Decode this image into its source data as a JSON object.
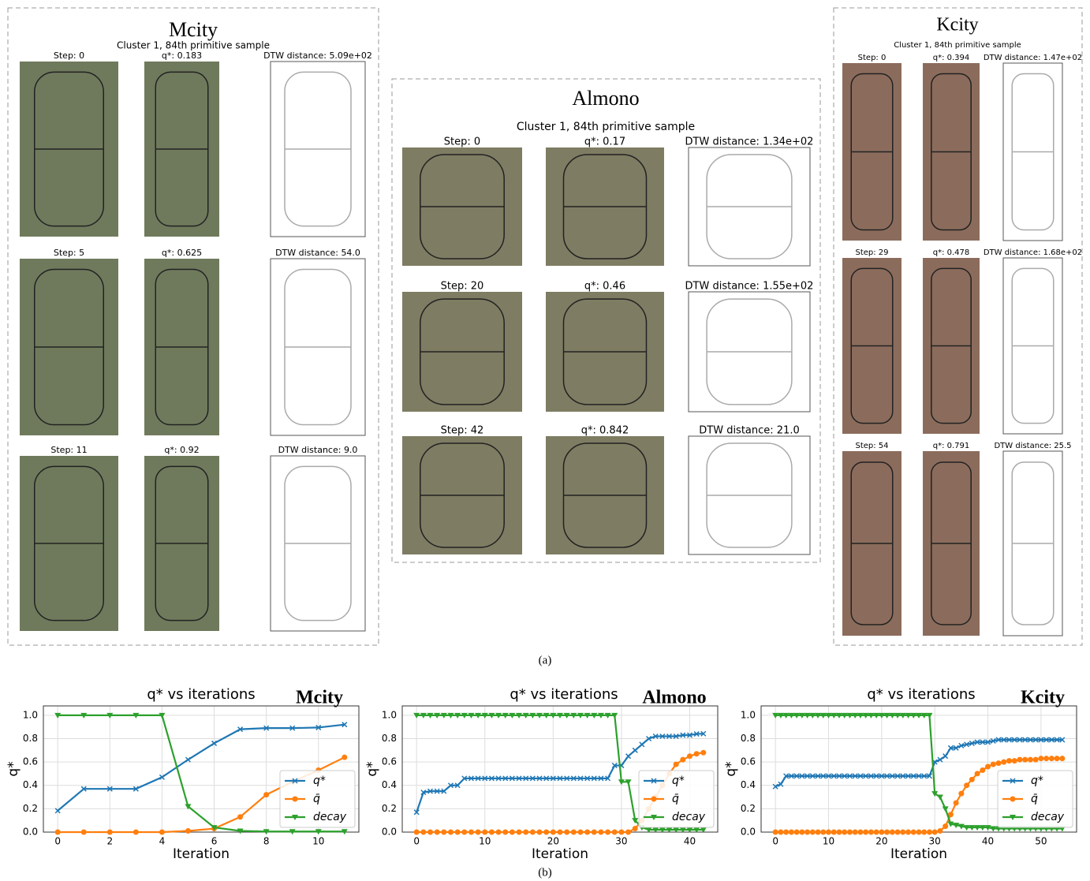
{
  "panels": [
    {
      "title": "Mcity",
      "subtitle": "Cluster 1, 84th primitive sample",
      "rows": [
        [
          "Step: 0",
          "q*: 0.183",
          "DTW distance: 5.09e+02"
        ],
        [
          "Step: 5",
          "q*: 0.625",
          "DTW distance: 54.0"
        ],
        [
          "Step: 11",
          "q*: 0.92",
          "DTW distance: 9.0"
        ]
      ]
    },
    {
      "title": "Almono",
      "subtitle": "Cluster 1, 84th primitive sample",
      "rows": [
        [
          "Step: 0",
          "q*: 0.17",
          "DTW distance: 1.34e+02"
        ],
        [
          "Step: 20",
          "q*: 0.46",
          "DTW distance: 1.55e+02"
        ],
        [
          "Step: 42",
          "q*: 0.842",
          "DTW distance: 21.0"
        ]
      ]
    },
    {
      "title": "Kcity",
      "subtitle": "Cluster 1, 84th primitive sample",
      "rows": [
        [
          "Step: 0",
          "q*: 0.394",
          "DTW distance: 1.47e+02"
        ],
        [
          "Step: 29",
          "q*: 0.478",
          "DTW distance: 1.68e+02"
        ],
        [
          "Step: 54",
          "q*: 0.791",
          "DTW distance: 25.5"
        ]
      ]
    }
  ],
  "caption_a": "(a)",
  "caption_b": "(b)",
  "chart_data": [
    {
      "type": "line",
      "title": "q* vs iterations",
      "label": "Mcity",
      "xlabel": "Iteration",
      "ylabel": "q*",
      "grid": true,
      "legend": "lower right",
      "x": [
        0,
        1,
        2,
        3,
        4,
        5,
        6,
        7,
        8,
        9,
        10,
        11
      ],
      "xlim": [
        -0.55,
        11.55
      ],
      "xticks": [
        0,
        2,
        4,
        6,
        8,
        10
      ],
      "ylim": [
        0,
        1.08
      ],
      "yticks": [
        {
          "value": 0,
          "label": "0.0"
        },
        0.2,
        0.4,
        0.6,
        0.8,
        {
          "value": 1,
          "label": "1.0"
        }
      ],
      "series": [
        {
          "name": "q*",
          "color": "#1f77b4",
          "marker": "x",
          "values": [
            0.183,
            0.37,
            0.37,
            0.37,
            0.47,
            0.62,
            0.76,
            0.88,
            0.89,
            0.89,
            0.895,
            0.92
          ]
        },
        {
          "name": "q̄",
          "color": "#ff7f0e",
          "marker": "o",
          "values": [
            0,
            0,
            0,
            0,
            0,
            0.01,
            0.03,
            0.13,
            0.32,
            0.43,
            0.53,
            0.64
          ]
        },
        {
          "name": "decay",
          "color": "#2ca02c",
          "marker": "v",
          "values": [
            1,
            1,
            1,
            1,
            1,
            0.22,
            0.04,
            0.01,
            0.005,
            0.005,
            0.005,
            0.005
          ]
        }
      ]
    },
    {
      "type": "line",
      "title": "q* vs iterations",
      "label": "Almono",
      "xlabel": "Iteration",
      "ylabel": "q*",
      "grid": true,
      "legend": "lower right",
      "x": [
        0,
        1,
        2,
        3,
        4,
        5,
        6,
        7,
        8,
        9,
        10,
        11,
        12,
        13,
        14,
        15,
        16,
        17,
        18,
        19,
        20,
        21,
        22,
        23,
        24,
        25,
        26,
        27,
        28,
        29,
        30,
        31,
        32,
        33,
        34,
        35,
        36,
        37,
        38,
        39,
        40,
        41,
        42
      ],
      "xlim": [
        -2.1,
        44.1
      ],
      "xticks": [
        0,
        10,
        20,
        30,
        40
      ],
      "ylim": [
        0,
        1.08
      ],
      "yticks": [
        {
          "value": 0,
          "label": "0.0"
        },
        0.2,
        0.4,
        0.6,
        0.8,
        {
          "value": 1,
          "label": "1.0"
        }
      ],
      "series": [
        {
          "name": "q*",
          "color": "#1f77b4",
          "marker": "x",
          "values": [
            0.17,
            0.34,
            0.35,
            0.35,
            0.35,
            0.4,
            0.4,
            0.46,
            0.46,
            0.46,
            0.46,
            0.46,
            0.46,
            0.46,
            0.46,
            0.46,
            0.46,
            0.46,
            0.46,
            0.46,
            0.46,
            0.46,
            0.46,
            0.46,
            0.46,
            0.46,
            0.46,
            0.46,
            0.46,
            0.57,
            0.57,
            0.65,
            0.7,
            0.75,
            0.8,
            0.82,
            0.82,
            0.82,
            0.82,
            0.83,
            0.83,
            0.84,
            0.842
          ]
        },
        {
          "name": "q̄",
          "color": "#ff7f0e",
          "marker": "o",
          "values": [
            0,
            0,
            0,
            0,
            0,
            0,
            0,
            0,
            0,
            0,
            0,
            0,
            0,
            0,
            0,
            0,
            0,
            0,
            0,
            0,
            0,
            0,
            0,
            0,
            0,
            0,
            0,
            0,
            0,
            0,
            0,
            0,
            0.03,
            0.1,
            0.2,
            0.3,
            0.4,
            0.5,
            0.58,
            0.62,
            0.65,
            0.67,
            0.68
          ]
        },
        {
          "name": "decay",
          "color": "#2ca02c",
          "marker": "v",
          "values": [
            1,
            1,
            1,
            1,
            1,
            1,
            1,
            1,
            1,
            1,
            1,
            1,
            1,
            1,
            1,
            1,
            1,
            1,
            1,
            1,
            1,
            1,
            1,
            1,
            1,
            1,
            1,
            1,
            1,
            1,
            0.43,
            0.43,
            0.1,
            0.04,
            0.02,
            0.02,
            0.02,
            0.02,
            0.02,
            0.02,
            0.02,
            0.02,
            0.02
          ]
        }
      ]
    },
    {
      "type": "line",
      "title": "q* vs iterations",
      "label": "Kcity",
      "xlabel": "Iteration",
      "ylabel": "q*",
      "grid": true,
      "legend": "lower right",
      "x": [
        0,
        1,
        2,
        3,
        4,
        5,
        6,
        7,
        8,
        9,
        10,
        11,
        12,
        13,
        14,
        15,
        16,
        17,
        18,
        19,
        20,
        21,
        22,
        23,
        24,
        25,
        26,
        27,
        28,
        29,
        30,
        31,
        32,
        33,
        34,
        35,
        36,
        37,
        38,
        39,
        40,
        41,
        42,
        43,
        44,
        45,
        46,
        47,
        48,
        49,
        50,
        51,
        52,
        53,
        54
      ],
      "xlim": [
        -2.7,
        56.7
      ],
      "xticks": [
        0,
        10,
        20,
        30,
        40,
        50
      ],
      "ylim": [
        0,
        1.08
      ],
      "yticks": [
        {
          "value": 0,
          "label": "0.0"
        },
        0.2,
        0.4,
        0.6,
        0.8,
        {
          "value": 1,
          "label": "1.0"
        }
      ],
      "series": [
        {
          "name": "q*",
          "color": "#1f77b4",
          "marker": "x",
          "values": [
            0.39,
            0.41,
            0.48,
            0.48,
            0.48,
            0.48,
            0.48,
            0.48,
            0.48,
            0.48,
            0.48,
            0.48,
            0.48,
            0.48,
            0.48,
            0.48,
            0.48,
            0.48,
            0.48,
            0.48,
            0.48,
            0.48,
            0.48,
            0.48,
            0.48,
            0.48,
            0.48,
            0.48,
            0.48,
            0.48,
            0.6,
            0.62,
            0.65,
            0.72,
            0.72,
            0.74,
            0.75,
            0.76,
            0.77,
            0.77,
            0.77,
            0.78,
            0.79,
            0.79,
            0.79,
            0.79,
            0.79,
            0.79,
            0.79,
            0.79,
            0.79,
            0.79,
            0.79,
            0.79,
            0.79
          ]
        },
        {
          "name": "q̄",
          "color": "#ff7f0e",
          "marker": "o",
          "values": [
            0,
            0,
            0,
            0,
            0,
            0,
            0,
            0,
            0,
            0,
            0,
            0,
            0,
            0,
            0,
            0,
            0,
            0,
            0,
            0,
            0,
            0,
            0,
            0,
            0,
            0,
            0,
            0,
            0,
            0,
            0,
            0.01,
            0.05,
            0.15,
            0.25,
            0.33,
            0.4,
            0.45,
            0.5,
            0.53,
            0.56,
            0.58,
            0.59,
            0.6,
            0.61,
            0.61,
            0.62,
            0.62,
            0.62,
            0.62,
            0.63,
            0.63,
            0.63,
            0.63,
            0.63
          ]
        },
        {
          "name": "decay",
          "color": "#2ca02c",
          "marker": "v",
          "values": [
            1,
            1,
            1,
            1,
            1,
            1,
            1,
            1,
            1,
            1,
            1,
            1,
            1,
            1,
            1,
            1,
            1,
            1,
            1,
            1,
            1,
            1,
            1,
            1,
            1,
            1,
            1,
            1,
            1,
            1,
            0.33,
            0.3,
            0.2,
            0.07,
            0.06,
            0.05,
            0.04,
            0.04,
            0.04,
            0.04,
            0.04,
            0.03,
            0.03,
            0.03,
            0.03,
            0.03,
            0.03,
            0.03,
            0.03,
            0.03,
            0.03,
            0.03,
            0.03,
            0.03,
            0.03
          ]
        }
      ]
    }
  ]
}
